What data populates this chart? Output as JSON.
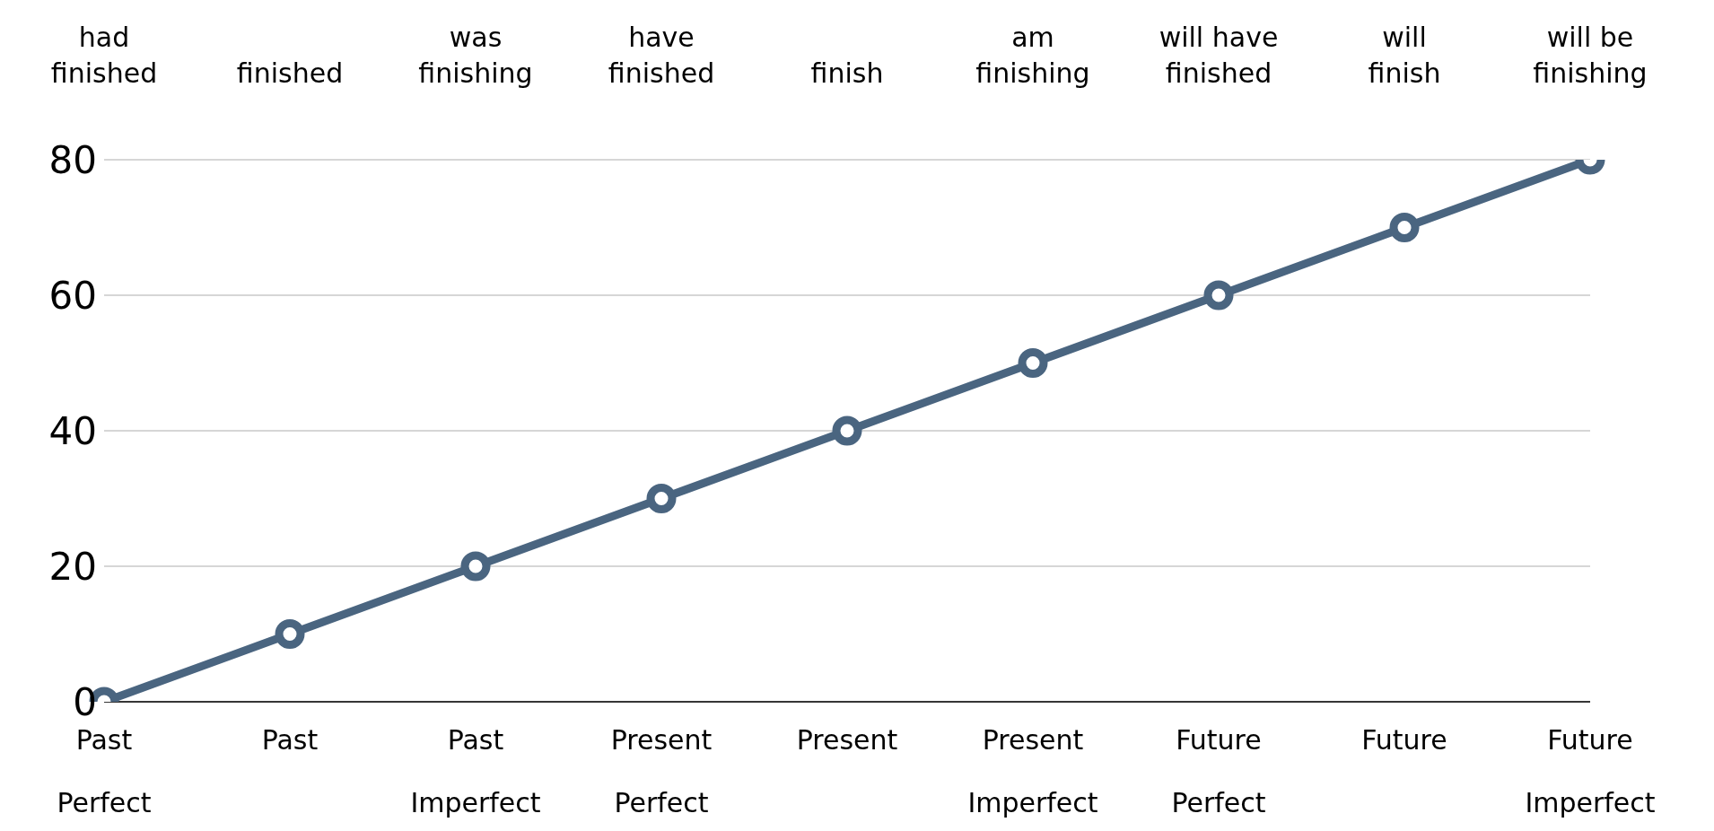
{
  "chart_data": {
    "type": "line",
    "categories": [
      "Past Perfect",
      "Past",
      "Past Imperfect",
      "Present Perfect",
      "Present",
      "Present Imperfect",
      "Future Perfect",
      "Future",
      "Future Imperfect"
    ],
    "values": [
      0,
      10,
      20,
      30,
      40,
      50,
      60,
      70,
      80
    ],
    "color": "#4a6580",
    "ylim": [
      0,
      80
    ],
    "yticks": [
      0,
      20,
      40,
      60,
      80
    ],
    "grid": "y",
    "marker": "circle",
    "line_style": "solid",
    "annotations": [
      "had finished",
      "finished",
      "was finishing",
      "have finished",
      "finish",
      "am finishing",
      "will have finished",
      "will finish",
      "will be finishing"
    ]
  }
}
